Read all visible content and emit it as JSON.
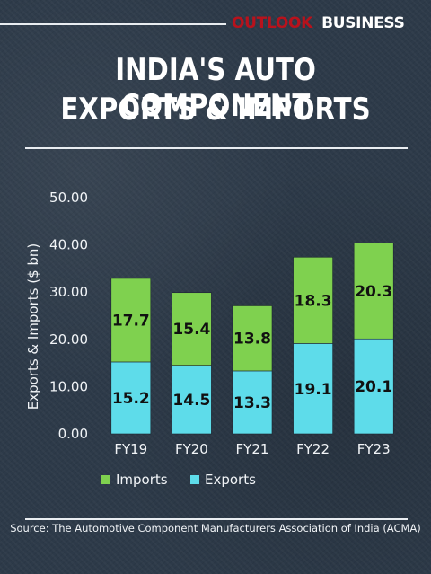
{
  "brand": {
    "name_red": "OUTLOOK",
    "name_white": "BUSINESS"
  },
  "colors": {
    "imports": "#7fd14f",
    "exports": "#5edcea",
    "background": "#2d3a49"
  },
  "source": "Source: The Automotive Component Manufacturers Association of India (ACMA)",
  "chart_data": {
    "type": "bar",
    "stacked": true,
    "title_lines": [
      "INDIA'S AUTO COMPONENT",
      "EXPORTS & IMPORTS"
    ],
    "ylabel": "Exports & Imports ($ bn)",
    "xlabel": "",
    "ylim": [
      0,
      50
    ],
    "yticks": [
      "0.00",
      "10.00",
      "20.00",
      "30.00",
      "40.00",
      "50.00"
    ],
    "categories": [
      "FY19",
      "FY20",
      "FY21",
      "FY22",
      "FY23"
    ],
    "series": [
      {
        "name": "Exports",
        "values": [
          15.2,
          14.5,
          13.3,
          19.1,
          20.1
        ],
        "labels": [
          "15.2",
          "14.5",
          "13.3",
          "19.1",
          "20.1"
        ],
        "color": "#5edcea"
      },
      {
        "name": "Imports",
        "values": [
          17.7,
          15.4,
          13.8,
          18.3,
          20.3
        ],
        "labels": [
          "17.7",
          "15.4",
          "13.8",
          "18.3",
          "20.3"
        ],
        "color": "#7fd14f"
      }
    ],
    "legend_order": [
      "Imports",
      "Exports"
    ],
    "legend_position": "bottom-left",
    "grid": false
  }
}
